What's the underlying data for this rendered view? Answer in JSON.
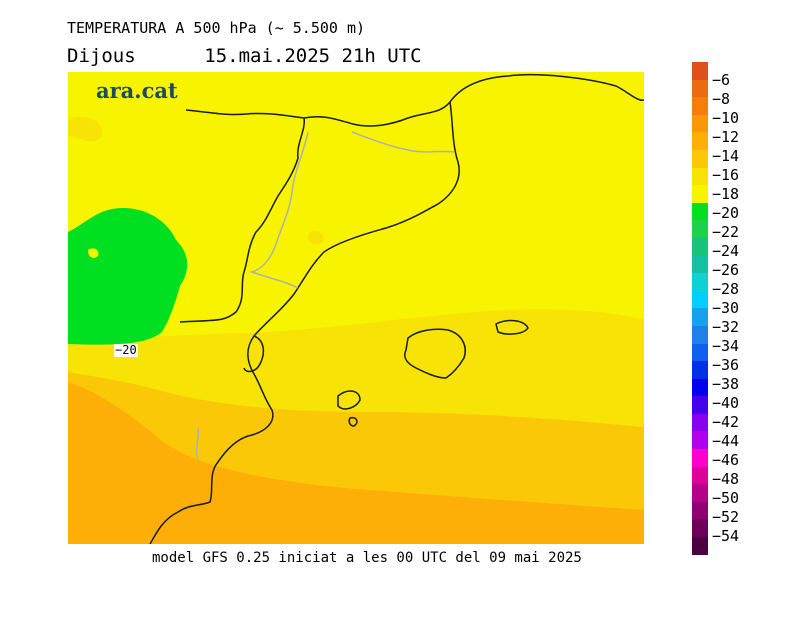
{
  "header": {
    "title": "TEMPERATURA A 500 hPa (~ 5.500 m)",
    "subtitle": "Dijous      15.mai.2025 21h UTC"
  },
  "map": {
    "logo": "ara.cat",
    "contour_label": "−20"
  },
  "footer": {
    "model_text": "model GFS 0.25 iniciat a les 00 UTC del 09 mai 2025"
  },
  "legend": {
    "colors": [
      "#e0501a",
      "#ec6a12",
      "#f47d0c",
      "#f89808",
      "#fdae07",
      "#fbc807",
      "#f7e305",
      "#f8f400",
      "#00e020",
      "#1ed24d",
      "#18c27b",
      "#15c0a2",
      "#10d2d2",
      "#00cfff",
      "#18a2ee",
      "#1e80e8",
      "#1060f0",
      "#0030e6",
      "#0000ee",
      "#4400ee",
      "#8800ee",
      "#b000ee",
      "#ff00cc",
      "#dd0099",
      "#b5008a",
      "#900075",
      "#6e005a",
      "#4a0040"
    ],
    "labels": [
      "−6",
      "−8",
      "−10",
      "−12",
      "−14",
      "−16",
      "−18",
      "−20",
      "−22",
      "−24",
      "−26",
      "−28",
      "−30",
      "−32",
      "−34",
      "−36",
      "−38",
      "−40",
      "−42",
      "−44",
      "−46",
      "−48",
      "−50",
      "−52",
      "−54"
    ]
  }
}
